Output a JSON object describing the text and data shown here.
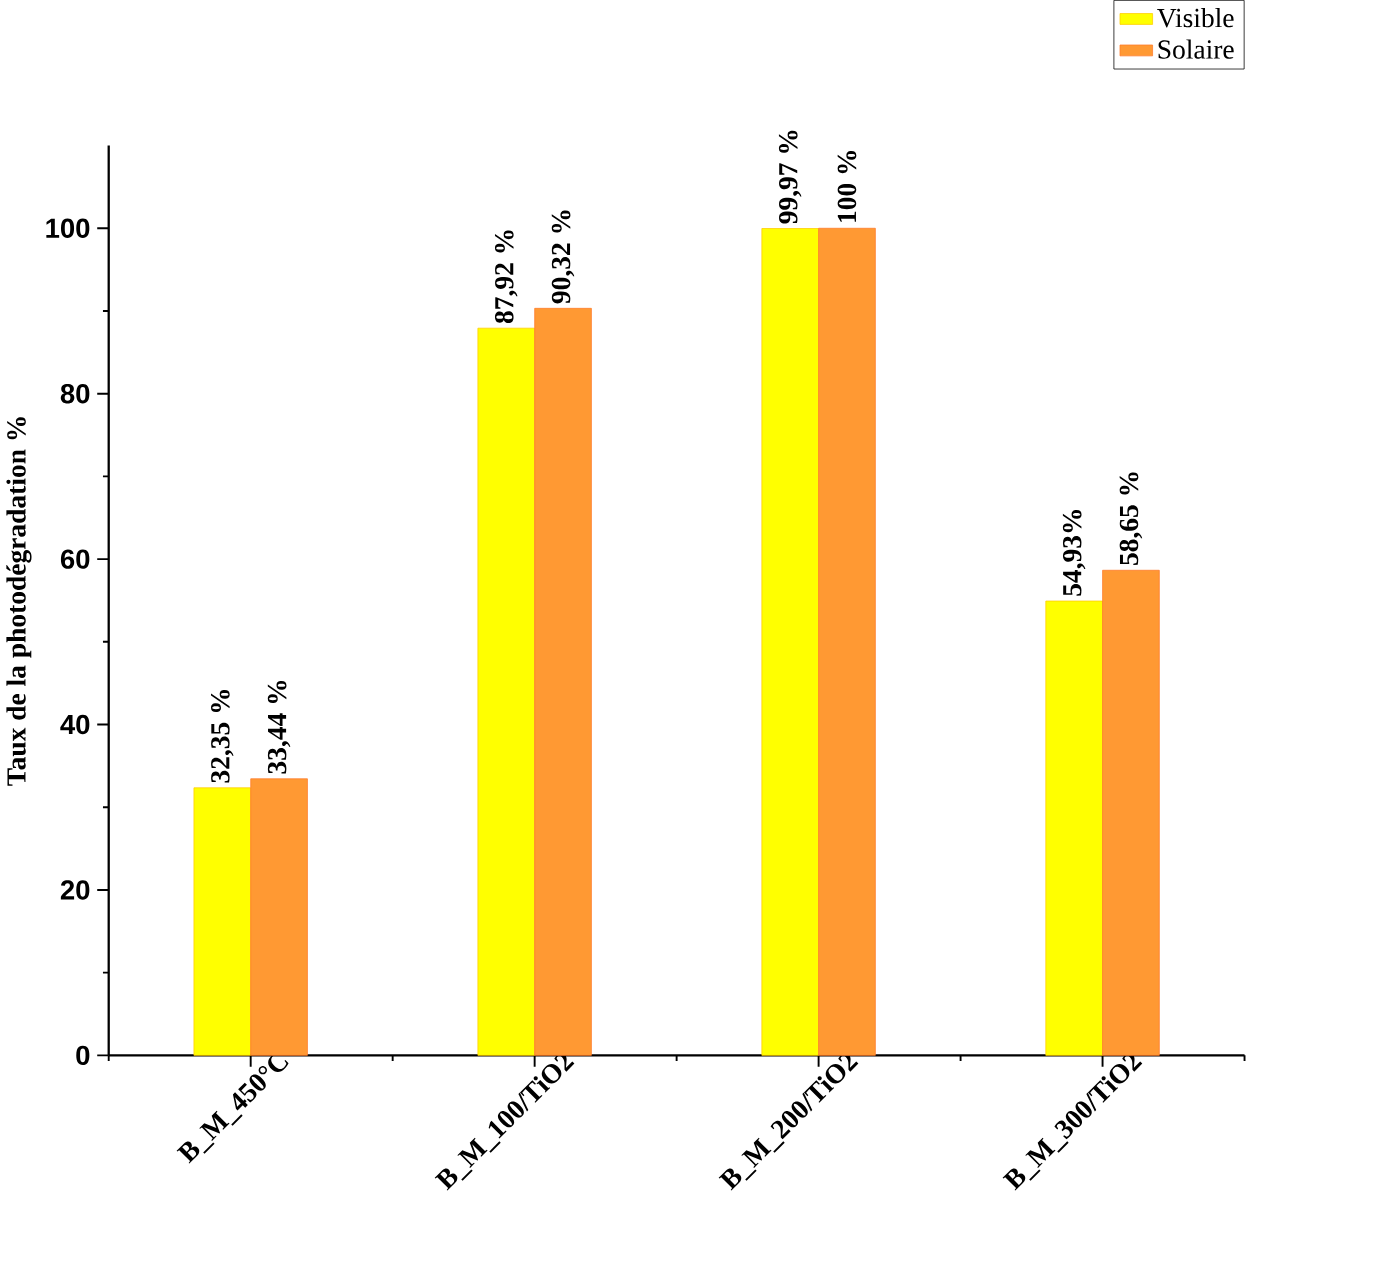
{
  "chart_data": {
    "type": "bar",
    "ylabel": "Taux de la photodégradation %",
    "categories": [
      "B_M_450°C",
      "B_M_100/TiO2",
      "B_M_200/TiO2",
      "B_M_300/TiO2"
    ],
    "series": [
      {
        "name": "Visible",
        "color": "#ffff00",
        "values": [
          32.35,
          87.92,
          99.97,
          54.93
        ],
        "value_labels": [
          "32,35 %",
          "87,92 %",
          "99,97 %",
          "54,93%"
        ]
      },
      {
        "name": "Solaire",
        "color": "#ff9933",
        "values": [
          33.44,
          90.32,
          100,
          58.65
        ],
        "value_labels": [
          "33,44 %",
          "90,32 %",
          "100 %",
          "58,65 %"
        ]
      }
    ],
    "ylim": [
      0,
      110
    ],
    "yticks": [
      0,
      20,
      40,
      60,
      80,
      100
    ],
    "grid": false,
    "legend": "top right"
  }
}
